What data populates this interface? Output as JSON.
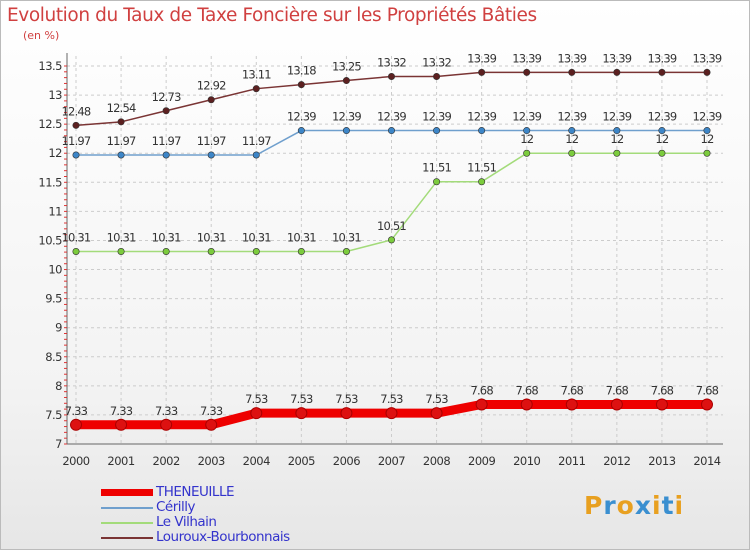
{
  "chart_data": {
    "type": "line",
    "title": "Evolution du Taux de Taxe Foncière sur les Propriétés Bâties",
    "ylabel": "(en %)",
    "xlabel": "",
    "categories": [
      "2000",
      "2001",
      "2002",
      "2003",
      "2004",
      "2005",
      "2006",
      "2007",
      "2008",
      "2009",
      "2010",
      "2011",
      "2012",
      "2013",
      "2014"
    ],
    "ylim": [
      7,
      13.5
    ],
    "yticks": [
      "7",
      "7.5",
      "8",
      "8.5",
      "9",
      "9.5",
      "10",
      "10.5",
      "11",
      "11.5",
      "12",
      "12.5",
      "13",
      "13.5"
    ],
    "grid": true,
    "legend_position": "bottom-left",
    "series": [
      {
        "name": "THENEUILLE",
        "color": "#ee0000",
        "marker": "#dd1111",
        "emphasis": true,
        "values": [
          7.33,
          7.33,
          7.33,
          7.33,
          7.53,
          7.53,
          7.53,
          7.53,
          7.53,
          7.68,
          7.68,
          7.68,
          7.68,
          7.68,
          7.68
        ],
        "labels": [
          "7.33",
          "7.33",
          "7.33",
          "7.33",
          "7.53",
          "7.53",
          "7.53",
          "7.53",
          "7.53",
          "7.68",
          "7.68",
          "7.68",
          "7.68",
          "7.68",
          "7.68"
        ]
      },
      {
        "name": "Cérilly",
        "color": "#6f9fcd",
        "marker": "#3d86c8",
        "emphasis": false,
        "values": [
          11.97,
          11.97,
          11.97,
          11.97,
          11.97,
          12.39,
          12.39,
          12.39,
          12.39,
          12.39,
          12.39,
          12.39,
          12.39,
          12.39,
          12.39
        ],
        "labels": [
          "11.97",
          "11.97",
          "11.97",
          "11.97",
          "11.97",
          "12.39",
          "12.39",
          "12.39",
          "12.39",
          "12.39",
          "12.39",
          "12.39",
          "12.39",
          "12.39",
          "12.39"
        ]
      },
      {
        "name": "Le Vilhain",
        "color": "#a3db7a",
        "marker": "#7ccc3d",
        "emphasis": false,
        "values": [
          10.31,
          10.31,
          10.31,
          10.31,
          10.31,
          10.31,
          10.31,
          10.51,
          11.51,
          11.51,
          12,
          12,
          12,
          12,
          12
        ],
        "labels": [
          "10.31",
          "10.31",
          "10.31",
          "10.31",
          "10.31",
          "10.31",
          "10.31",
          "10.51",
          "11.51",
          "11.51",
          "12",
          "12",
          "12",
          "12",
          "12"
        ]
      },
      {
        "name": "Louroux-Bourbonnais",
        "color": "#7a3434",
        "marker": "#5c2020",
        "emphasis": false,
        "values": [
          12.48,
          12.54,
          12.73,
          12.92,
          13.11,
          13.18,
          13.25,
          13.32,
          13.32,
          13.39,
          13.39,
          13.39,
          13.39,
          13.39,
          13.39
        ],
        "labels": [
          "12.48",
          "12.54",
          "12.73",
          "12.92",
          "13.11",
          "13.18",
          "13.25",
          "13.32",
          "13.32",
          "13.39",
          "13.39",
          "13.39",
          "13.39",
          "13.39",
          "13.39"
        ]
      }
    ]
  },
  "logo": {
    "text": "Proxiti",
    "letters": [
      "P",
      "r",
      "o",
      "x",
      "i",
      "t",
      "i"
    ],
    "colors": [
      "#e8a020",
      "#3a8fd0",
      "#e8a020",
      "#3a8fd0",
      "#e8a020",
      "#3a8fd0",
      "#e8a020"
    ]
  }
}
